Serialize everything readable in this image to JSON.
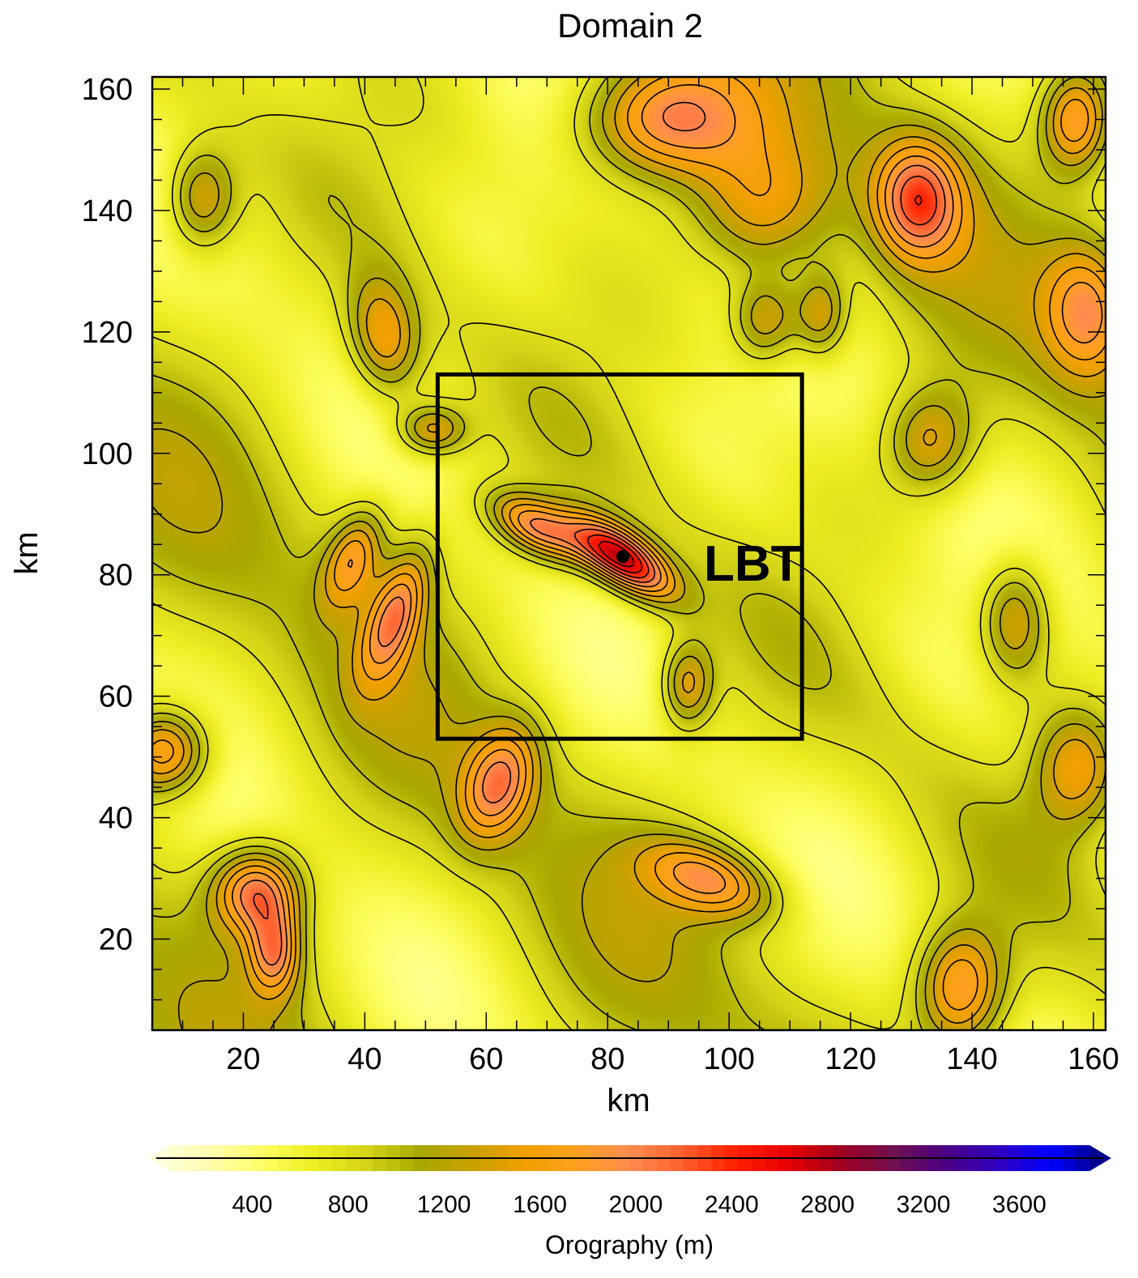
{
  "title": "Domain 2",
  "x_axis": {
    "label": "km",
    "range": [
      5,
      162
    ],
    "ticks": [
      20,
      40,
      60,
      80,
      100,
      120,
      140,
      160
    ]
  },
  "y_axis": {
    "label": "km",
    "range": [
      5,
      162
    ],
    "ticks": [
      20,
      40,
      60,
      80,
      100,
      120,
      140,
      160
    ]
  },
  "inner_domain": {
    "x": [
      52,
      112
    ],
    "y": [
      53,
      113
    ]
  },
  "site": {
    "name": "LBT",
    "x": 82.5,
    "y": 83
  },
  "colorbar": {
    "title": "Orography (m)",
    "range": [
      0,
      3950
    ],
    "ticks": [
      400,
      800,
      1200,
      1600,
      2000,
      2400,
      2800,
      3200,
      3600
    ],
    "colors": [
      "#ffffe0",
      "#fffdb0",
      "#ffff66",
      "#eeee22",
      "#d4d418",
      "#a8a800",
      "#c8a000",
      "#f0a000",
      "#ffa020",
      "#ff8c50",
      "#ff6030",
      "#ff2000",
      "#e80000",
      "#a00020",
      "#701050",
      "#4b0082",
      "#3000c0",
      "#0000ff",
      "#000080"
    ]
  },
  "orography_peaks": [
    {
      "x": 82,
      "y": 83,
      "height": 3000,
      "sx": 7,
      "sy": 3,
      "angle": -35
    },
    {
      "x": 68,
      "y": 88,
      "height": 2200,
      "sx": 6,
      "sy": 3,
      "angle": -30
    },
    {
      "x": 45,
      "y": 74,
      "height": 2000,
      "sx": 3,
      "sy": 8,
      "angle": -20
    },
    {
      "x": 38,
      "y": 83,
      "height": 1850,
      "sx": 3,
      "sy": 6,
      "angle": -20
    },
    {
      "x": 62,
      "y": 46,
      "height": 2000,
      "sx": 4,
      "sy": 7,
      "angle": -20
    },
    {
      "x": 22,
      "y": 28,
      "height": 2300,
      "sx": 5,
      "sy": 5,
      "angle": 0
    },
    {
      "x": 25,
      "y": 18,
      "height": 2000,
      "sx": 3,
      "sy": 5,
      "angle": 0
    },
    {
      "x": 7,
      "y": 51,
      "height": 2200,
      "sx": 5,
      "sy": 5,
      "angle": 0
    },
    {
      "x": 43,
      "y": 119,
      "height": 1900,
      "sx": 4,
      "sy": 7,
      "angle": 10
    },
    {
      "x": 51,
      "y": 104,
      "height": 1850,
      "sx": 4,
      "sy": 3,
      "angle": 0
    },
    {
      "x": 97,
      "y": 30,
      "height": 2000,
      "sx": 8,
      "sy": 4,
      "angle": -20
    },
    {
      "x": 138,
      "y": 12,
      "height": 2100,
      "sx": 5,
      "sy": 7,
      "angle": 0
    },
    {
      "x": 133,
      "y": 102,
      "height": 1750,
      "sx": 5,
      "sy": 6,
      "angle": 0
    },
    {
      "x": 147,
      "y": 73,
      "height": 1800,
      "sx": 4,
      "sy": 7,
      "angle": 0
    },
    {
      "x": 157,
      "y": 48,
      "height": 1800,
      "sx": 5,
      "sy": 7,
      "angle": 0
    },
    {
      "x": 89,
      "y": 155,
      "height": 2200,
      "sx": 10,
      "sy": 7,
      "angle": 0
    },
    {
      "x": 131,
      "y": 142,
      "height": 2200,
      "sx": 5,
      "sy": 7,
      "angle": 0
    },
    {
      "x": 157,
      "y": 155,
      "height": 2100,
      "sx": 4,
      "sy": 6,
      "angle": 0
    },
    {
      "x": 159,
      "y": 124,
      "height": 1900,
      "sx": 5,
      "sy": 8,
      "angle": 0
    },
    {
      "x": 106,
      "y": 122,
      "height": 1800,
      "sx": 4,
      "sy": 5,
      "angle": 0
    },
    {
      "x": 115,
      "y": 123,
      "height": 1750,
      "sx": 3,
      "sy": 5,
      "angle": 0
    },
    {
      "x": 13,
      "y": 142,
      "height": 1800,
      "sx": 4,
      "sy": 6,
      "angle": 0
    },
    {
      "x": 105,
      "y": 140,
      "height": 1750,
      "sx": 8,
      "sy": 8,
      "angle": 0
    },
    {
      "x": 93,
      "y": 62,
      "height": 1800,
      "sx": 3,
      "sy": 5,
      "angle": 0
    }
  ]
}
